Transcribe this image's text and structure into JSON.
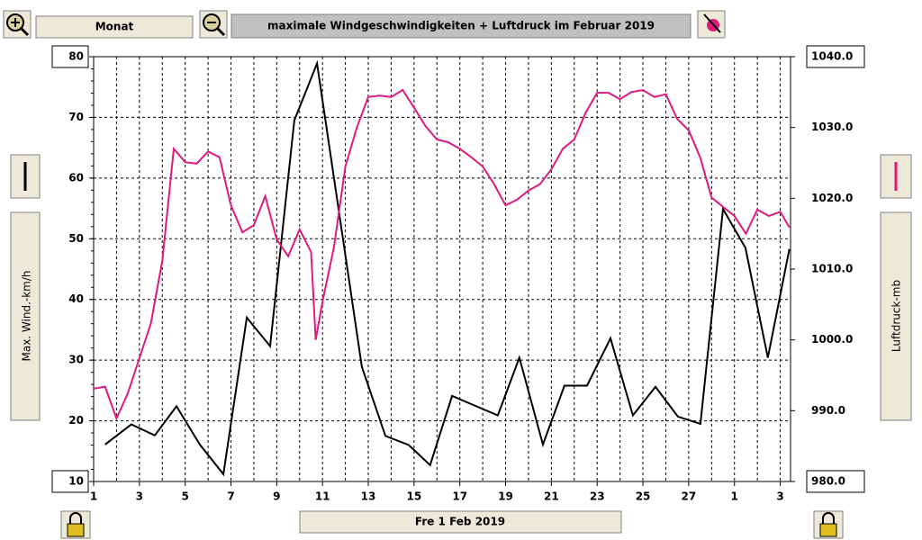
{
  "toolbar": {
    "period_button": "Monat",
    "date_button": "Fre 1 Feb 2019"
  },
  "chart_data": {
    "type": "line",
    "title": "maximale Windgeschwindigkeiten + Luftdruck im Februar 2019",
    "ylabel": "Max. Wind.-km/h",
    "y2label": "Luftdruck-mb",
    "xlim": [
      1,
      31.45
    ],
    "ylim": [
      10,
      80
    ],
    "y2lim": [
      980,
      1040
    ],
    "xticks": [
      1,
      3,
      5,
      7,
      9,
      11,
      13,
      15,
      17,
      19,
      21,
      23,
      25,
      27,
      {
        "value": 29,
        "label": "1"
      },
      {
        "value": 31,
        "label": "3"
      }
    ],
    "xminorticks": [
      2,
      4,
      6,
      8,
      10,
      12,
      14,
      16,
      18,
      20,
      22,
      24,
      26,
      28,
      30
    ],
    "yticks": [
      10,
      20,
      30,
      40,
      50,
      60,
      70,
      80
    ],
    "y2ticks": [
      {
        "value": 980,
        "label": "980.0"
      },
      {
        "value": 990,
        "label": "990.0"
      },
      {
        "value": 1000,
        "label": "1000.0"
      },
      {
        "value": 1010,
        "label": "1010.0"
      },
      {
        "value": 1020,
        "label": "1020.0"
      },
      {
        "value": 1030,
        "label": "1030.0"
      },
      {
        "value": 1040,
        "label": "1040.0"
      }
    ],
    "grid": true,
    "series": [
      {
        "color": "#000000",
        "axis": "y",
        "x": [
          1.5,
          2.65,
          3.67,
          4.62,
          5.64,
          6.67,
          7.69,
          8.71,
          9.77,
          10.76,
          12.72,
          13.75,
          14.77,
          15.7,
          16.66,
          18.66,
          19.6,
          20.63,
          21.57,
          22.56,
          23.58,
          24.56,
          25.55,
          26.53,
          27.51,
          28.5,
          29.48,
          30.46,
          31.4
        ],
        "values": [
          16.1,
          19.4,
          17.6,
          22.4,
          16.1,
          11.2,
          37.0,
          32.3,
          69.5,
          78.9,
          28.9,
          17.5,
          16.0,
          12.7,
          24.1,
          20.9,
          30.4,
          16.1,
          25.8,
          25.8,
          33.6,
          20.9,
          25.6,
          20.7,
          19.5,
          54.9,
          48.5,
          30.4,
          48.3
        ]
      },
      {
        "color": "#e0197d",
        "axis": "y2",
        "x": [
          1,
          1.5,
          2,
          2.5,
          3,
          3.5,
          4,
          4.5,
          5,
          5.5,
          6,
          6.5,
          7,
          7.5,
          8,
          8.5,
          9,
          9.5,
          10,
          10.5,
          10.7,
          11,
          11.5,
          12,
          12.5,
          13,
          13.5,
          14,
          14.5,
          15,
          15.5,
          16,
          16.5,
          17,
          17.5,
          18,
          18.5,
          19,
          19.5,
          20,
          20.5,
          21,
          21.5,
          22,
          22.5,
          23,
          23.5,
          24,
          24.5,
          25,
          25.5,
          26,
          26.5,
          27,
          27.5,
          28,
          28.5,
          29,
          29.5,
          30,
          30.5,
          31,
          31.4
        ],
        "values": [
          993.1,
          993.4,
          988.9,
          992.5,
          997.4,
          1002.3,
          1011.2,
          1027.0,
          1025.1,
          1024.9,
          1026.6,
          1025.8,
          1019.0,
          1015.2,
          1016.2,
          1020.3,
          1014.2,
          1011.8,
          1015.6,
          1012.4,
          1000.0,
          1005.4,
          1013.1,
          1024.5,
          1030.0,
          1034.3,
          1034.5,
          1034.3,
          1035.3,
          1032.8,
          1030.2,
          1028.3,
          1027.9,
          1027.0,
          1025.8,
          1024.5,
          1022.0,
          1019.0,
          1019.8,
          1021.1,
          1022.0,
          1024.1,
          1027.0,
          1028.3,
          1032.1,
          1034.9,
          1034.9,
          1034.0,
          1035.0,
          1035.3,
          1034.3,
          1034.7,
          1031.2,
          1029.6,
          1025.8,
          1020.1,
          1018.8,
          1017.5,
          1015.0,
          1018.4,
          1017.5,
          1018.1,
          1015.9
        ]
      }
    ]
  }
}
